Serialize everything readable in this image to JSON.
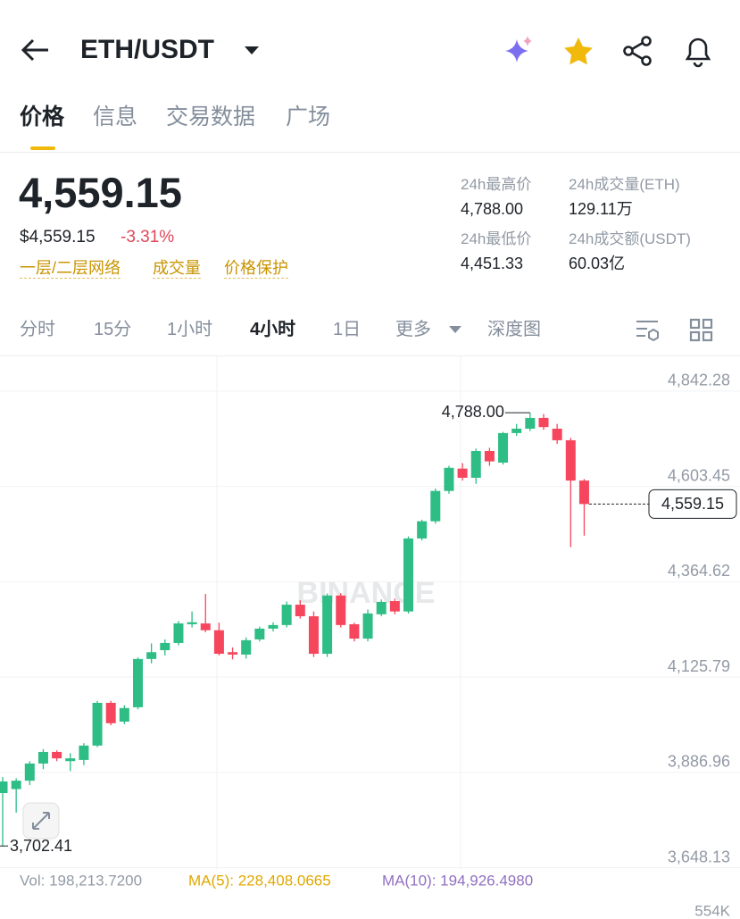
{
  "header": {
    "pair": "ETH/USDT"
  },
  "tabs": [
    "价格",
    "信息",
    "交易数据",
    "广场"
  ],
  "price": {
    "last": "4,559.15",
    "usd": "$4,559.15",
    "change": "-3.31%"
  },
  "tags": [
    "一层/二层网络",
    "成交量",
    "价格保护"
  ],
  "stats": [
    {
      "label": "24h最高价",
      "value": "4,788.00"
    },
    {
      "label": "24h成交量(ETH)",
      "value": "129.11万"
    },
    {
      "label": "24h最低价",
      "value": "4,451.33"
    },
    {
      "label": "24h成交额(USDT)",
      "value": "60.03亿"
    }
  ],
  "intervals": [
    "分时",
    "15分",
    "1小时",
    "4小时",
    "1日",
    "更多",
    "深度图"
  ],
  "indicators": {
    "vol": "Vol: 198,213.7200",
    "ma5": "MA(5): 228,408.0665",
    "ma10": "MA(10): 194,926.4980",
    "volume_axis": "554K"
  },
  "chart_data": {
    "type": "candlestick",
    "watermark": "BINANCE",
    "up_color": "#2ebd85",
    "down_color": "#f6465d",
    "grid": true,
    "ylim": [
      3648.13,
      4927
    ],
    "yticks": [
      {
        "value": 4842.28,
        "label": "4,842.28"
      },
      {
        "value": 4603.45,
        "label": "4,603.45"
      },
      {
        "value": 4364.62,
        "label": "4,364.62"
      },
      {
        "value": 4125.79,
        "label": "4,125.79"
      },
      {
        "value": 3886.96,
        "label": "3,886.96"
      },
      {
        "value": 3648.13,
        "label": "3,648.13"
      }
    ],
    "open": [
      3835,
      3845,
      3866,
      3909,
      3938,
      3915,
      3918,
      3954,
      4061,
      4014,
      4050,
      4171,
      4193,
      4211,
      4258,
      4260,
      4243,
      4188,
      4182,
      4220,
      4247,
      4256,
      4307,
      4278,
      4184,
      4330,
      4258,
      4222,
      4283,
      4316,
      4290,
      4473,
      4516,
      4592,
      4648,
      4625,
      4692,
      4663,
      4737,
      4748,
      4775,
      4748,
      4719,
      4618
    ],
    "high": [
      3875,
      3872,
      3915,
      3945,
      3942,
      3935,
      3960,
      4066,
      4066,
      4055,
      4175,
      4210,
      4220,
      4266,
      4290,
      4334,
      4262,
      4200,
      4225,
      4252,
      4263,
      4315,
      4318,
      4290,
      4335,
      4336,
      4262,
      4295,
      4320,
      4322,
      4478,
      4520,
      4598,
      4655,
      4662,
      4698,
      4700,
      4740,
      4760,
      4788,
      4785,
      4760,
      4725,
      4622
    ],
    "low": [
      3702.41,
      3786,
      3855,
      3895,
      3915,
      3890,
      3905,
      3950,
      4005,
      4008,
      4045,
      4160,
      4180,
      4205,
      4250,
      4238,
      4180,
      4170,
      4172,
      4215,
      4240,
      4250,
      4272,
      4176,
      4176,
      4250,
      4215,
      4215,
      4278,
      4283,
      4285,
      4468,
      4510,
      4585,
      4618,
      4610,
      4655,
      4658,
      4730,
      4742,
      4745,
      4710,
      4451.33,
      4480
    ],
    "close": [
      3864,
      3866,
      3909,
      3938,
      3922,
      3922,
      3954,
      4061,
      4010,
      4048,
      4171,
      4188,
      4211,
      4260,
      4263,
      4243,
      4184,
      4182,
      4218,
      4247,
      4256,
      4307,
      4278,
      4184,
      4330,
      4256,
      4222,
      4285,
      4314,
      4290,
      4473,
      4516,
      4592,
      4650,
      4625,
      4692,
      4666,
      4737,
      4748,
      4775,
      4752,
      4719,
      4618,
      4559.15
    ],
    "high_label": "4,788.00",
    "low_label": "3,702.41",
    "last_label": "4,559.15"
  }
}
